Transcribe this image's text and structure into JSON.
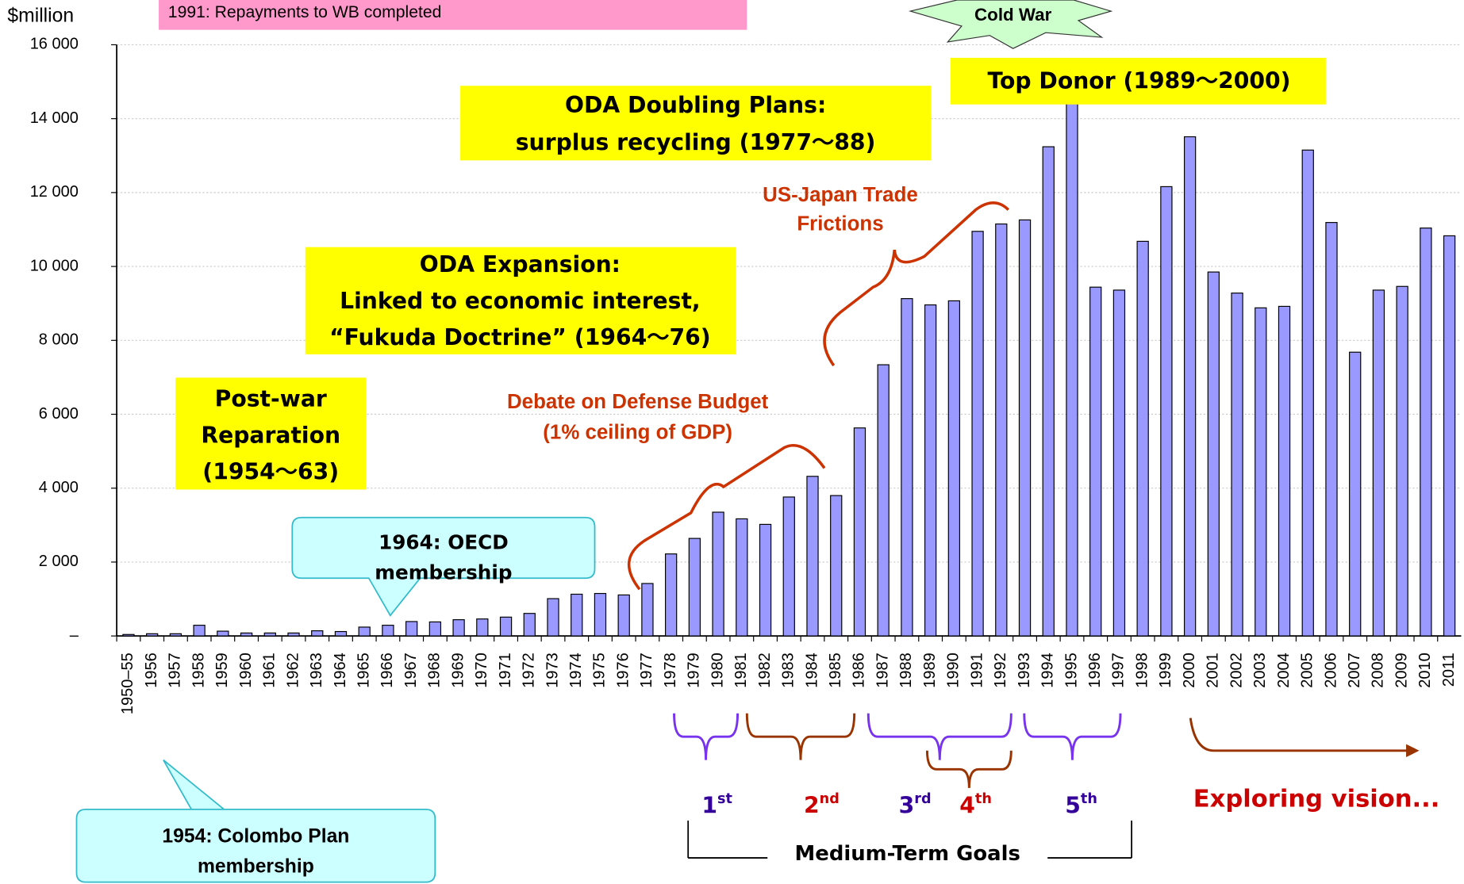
{
  "chart_data": {
    "type": "bar",
    "y_axis_label": "$million",
    "categories": [
      "1950–55",
      "1956",
      "1957",
      "1958",
      "1959",
      "1960",
      "1961",
      "1962",
      "1963",
      "1964",
      "1965",
      "1966",
      "1967",
      "1968",
      "1969",
      "1970",
      "1971",
      "1972",
      "1973",
      "1974",
      "1975",
      "1976",
      "1977",
      "1978",
      "1979",
      "1980",
      "1981",
      "1982",
      "1983",
      "1984",
      "1985",
      "1986",
      "1987",
      "1988",
      "1989",
      "1990",
      "1991",
      "1992",
      "1993",
      "1994",
      "1995",
      "1996",
      "1997",
      "1998",
      "1999",
      "2000",
      "2001",
      "2002",
      "2003",
      "2004",
      "2005",
      "2006",
      "2007",
      "2008",
      "2009",
      "2010",
      "2011"
    ],
    "values": [
      40,
      60,
      60,
      290,
      130,
      80,
      80,
      80,
      140,
      120,
      240,
      290,
      390,
      380,
      440,
      460,
      510,
      610,
      1010,
      1130,
      1150,
      1110,
      1420,
      2220,
      2640,
      3350,
      3170,
      3020,
      3760,
      4320,
      3800,
      5630,
      7340,
      9130,
      8960,
      9070,
      10950,
      11150,
      11260,
      13240,
      14490,
      9440,
      9360,
      10680,
      12160,
      13510,
      9850,
      9280,
      8880,
      8920,
      13150,
      11190,
      7680,
      9360,
      9460,
      11040,
      10830
    ],
    "color": "#9999ff",
    "ylim": [
      0,
      16000
    ],
    "yticks": [
      {
        "value": 0,
        "label": "–"
      },
      {
        "value": 2000,
        "label": "2 000"
      },
      {
        "value": 4000,
        "label": "4 000"
      },
      {
        "value": 6000,
        "label": "6 000"
      },
      {
        "value": 8000,
        "label": "8 000"
      },
      {
        "value": 10000,
        "label": "10 000"
      },
      {
        "value": 12000,
        "label": "12 000"
      },
      {
        "value": 14000,
        "label": "14 000"
      },
      {
        "value": 16000,
        "label": "16 000"
      }
    ],
    "grid": true,
    "annotations": [
      {
        "lines": [
          "1991: Repayments to WB completed"
        ]
      },
      {
        "lines": [
          "Cold War"
        ]
      },
      {
        "lines": [
          "Top Donor (1989～2000)"
        ]
      },
      {
        "lines": [
          "ODA Doubling Plans:",
          "surplus recycling (1977～88)"
        ]
      },
      {
        "lines": [
          "US-Japan Trade",
          "Frictions"
        ]
      },
      {
        "lines": [
          "ODA Expansion:",
          "Linked to economic interest,",
          "“Fukuda Doctrine” (1964～76)"
        ]
      },
      {
        "lines": [
          "Post-war",
          "Reparation",
          "(1954～63)"
        ]
      },
      {
        "lines": [
          "Debate on Defense Budget",
          "(1% ceiling of GDP)"
        ]
      },
      {
        "lines": [
          "1964: OECD",
          "membership"
        ]
      },
      {
        "lines": [
          "1954: Colombo Plan",
          "membership"
        ]
      },
      {
        "lines": [
          "Exploring vision..."
        ]
      },
      {
        "lines": [
          "Medium-Term Goals"
        ]
      }
    ],
    "goals": [
      {
        "n": "1",
        "sup": "st"
      },
      {
        "n": "2",
        "sup": "nd"
      },
      {
        "n": "3",
        "sup": "rd"
      },
      {
        "n": "4",
        "sup": "th"
      },
      {
        "n": "5",
        "sup": "th"
      }
    ]
  }
}
